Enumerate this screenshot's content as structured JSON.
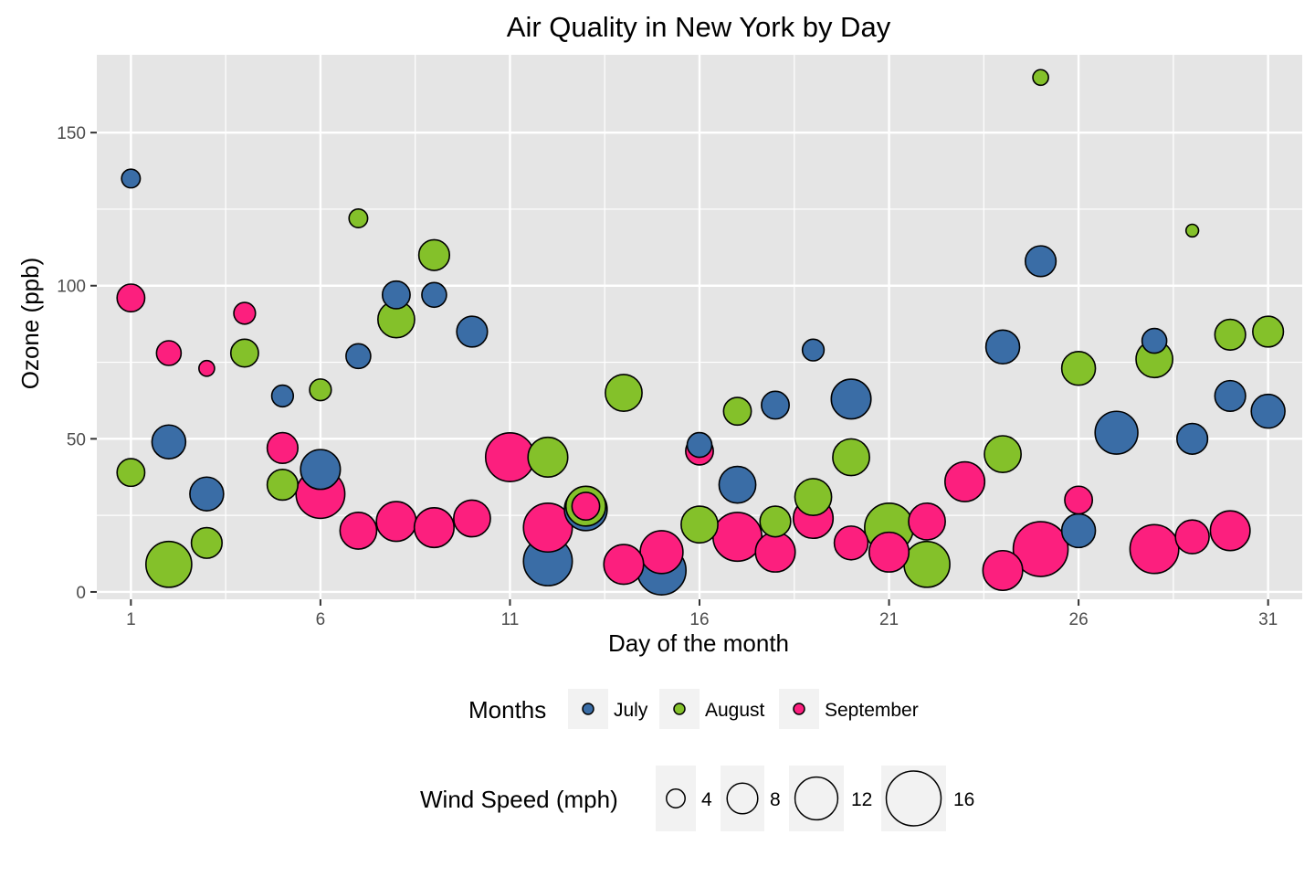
{
  "chart_data": {
    "type": "scatter",
    "title": "Air Quality in New York by Day",
    "xlabel": "Day of the month",
    "ylabel": "Ozone (ppb)",
    "xlim": [
      0.1,
      31.9
    ],
    "ylim": [
      -2.4,
      175.4
    ],
    "x_ticks": [
      1,
      6,
      11,
      16,
      21,
      26,
      31
    ],
    "y_ticks": [
      0,
      50,
      100,
      150
    ],
    "grid": true,
    "colors": {
      "July": "#3a6da6",
      "August": "#84c12a",
      "September": "#fc1f7e"
    },
    "series": [
      {
        "name": "July",
        "points": [
          {
            "day": 1,
            "ozone": 135,
            "wind": 4
          },
          {
            "day": 2,
            "ozone": 49,
            "wind": 9
          },
          {
            "day": 3,
            "ozone": 32,
            "wind": 9
          },
          {
            "day": 5,
            "ozone": 64,
            "wind": 5
          },
          {
            "day": 6,
            "ozone": 40,
            "wind": 11
          },
          {
            "day": 7,
            "ozone": 77,
            "wind": 6
          },
          {
            "day": 8,
            "ozone": 97,
            "wind": 7
          },
          {
            "day": 9,
            "ozone": 97,
            "wind": 6
          },
          {
            "day": 10,
            "ozone": 85,
            "wind": 8
          },
          {
            "day": 12,
            "ozone": 10,
            "wind": 14
          },
          {
            "day": 13,
            "ozone": 27,
            "wind": 12
          },
          {
            "day": 15,
            "ozone": 7,
            "wind": 14
          },
          {
            "day": 16,
            "ozone": 48,
            "wind": 6
          },
          {
            "day": 17,
            "ozone": 35,
            "wind": 10
          },
          {
            "day": 18,
            "ozone": 61,
            "wind": 7
          },
          {
            "day": 19,
            "ozone": 79,
            "wind": 5
          },
          {
            "day": 20,
            "ozone": 63,
            "wind": 11
          },
          {
            "day": 24,
            "ozone": 80,
            "wind": 9
          },
          {
            "day": 25,
            "ozone": 108,
            "wind": 8
          },
          {
            "day": 26,
            "ozone": 20,
            "wind": 9
          },
          {
            "day": 27,
            "ozone": 52,
            "wind": 12
          },
          {
            "day": 28,
            "ozone": 82,
            "wind": 6
          },
          {
            "day": 29,
            "ozone": 50,
            "wind": 8
          },
          {
            "day": 30,
            "ozone": 64,
            "wind": 8
          },
          {
            "day": 31,
            "ozone": 59,
            "wind": 9
          }
        ]
      },
      {
        "name": "August",
        "points": [
          {
            "day": 1,
            "ozone": 39,
            "wind": 7
          },
          {
            "day": 2,
            "ozone": 9,
            "wind": 13
          },
          {
            "day": 3,
            "ozone": 16,
            "wind": 8
          },
          {
            "day": 4,
            "ozone": 78,
            "wind": 7
          },
          {
            "day": 5,
            "ozone": 35,
            "wind": 8
          },
          {
            "day": 6,
            "ozone": 66,
            "wind": 5
          },
          {
            "day": 7,
            "ozone": 122,
            "wind": 4
          },
          {
            "day": 8,
            "ozone": 89,
            "wind": 10
          },
          {
            "day": 9,
            "ozone": 110,
            "wind": 8
          },
          {
            "day": 12,
            "ozone": 44,
            "wind": 11
          },
          {
            "day": 13,
            "ozone": 28,
            "wind": 11
          },
          {
            "day": 14,
            "ozone": 65,
            "wind": 10
          },
          {
            "day": 16,
            "ozone": 22,
            "wind": 10
          },
          {
            "day": 17,
            "ozone": 59,
            "wind": 7
          },
          {
            "day": 18,
            "ozone": 23,
            "wind": 8
          },
          {
            "day": 19,
            "ozone": 31,
            "wind": 10
          },
          {
            "day": 20,
            "ozone": 44,
            "wind": 10
          },
          {
            "day": 21,
            "ozone": 21,
            "wind": 14
          },
          {
            "day": 22,
            "ozone": 9,
            "wind": 13
          },
          {
            "day": 24,
            "ozone": 45,
            "wind": 10
          },
          {
            "day": 25,
            "ozone": 168,
            "wind": 3
          },
          {
            "day": 26,
            "ozone": 73,
            "wind": 9
          },
          {
            "day": 28,
            "ozone": 76,
            "wind": 10
          },
          {
            "day": 29,
            "ozone": 118,
            "wind": 2
          },
          {
            "day": 30,
            "ozone": 84,
            "wind": 8
          },
          {
            "day": 31,
            "ozone": 85,
            "wind": 8
          }
        ]
      },
      {
        "name": "September",
        "points": [
          {
            "day": 1,
            "ozone": 96,
            "wind": 7
          },
          {
            "day": 2,
            "ozone": 78,
            "wind": 6
          },
          {
            "day": 3,
            "ozone": 73,
            "wind": 3
          },
          {
            "day": 4,
            "ozone": 91,
            "wind": 5
          },
          {
            "day": 5,
            "ozone": 47,
            "wind": 8
          },
          {
            "day": 6,
            "ozone": 32,
            "wind": 14
          },
          {
            "day": 7,
            "ozone": 20,
            "wind": 10
          },
          {
            "day": 8,
            "ozone": 23,
            "wind": 11
          },
          {
            "day": 9,
            "ozone": 21,
            "wind": 11
          },
          {
            "day": 10,
            "ozone": 24,
            "wind": 10
          },
          {
            "day": 11,
            "ozone": 44,
            "wind": 14
          },
          {
            "day": 12,
            "ozone": 21,
            "wind": 14
          },
          {
            "day": 13,
            "ozone": 28,
            "wind": 7
          },
          {
            "day": 14,
            "ozone": 9,
            "wind": 11
          },
          {
            "day": 15,
            "ozone": 13,
            "wind": 12
          },
          {
            "day": 16,
            "ozone": 46,
            "wind": 7
          },
          {
            "day": 17,
            "ozone": 18,
            "wind": 14
          },
          {
            "day": 18,
            "ozone": 13,
            "wind": 11
          },
          {
            "day": 19,
            "ozone": 24,
            "wind": 11
          },
          {
            "day": 20,
            "ozone": 16,
            "wind": 9
          },
          {
            "day": 21,
            "ozone": 13,
            "wind": 11
          },
          {
            "day": 22,
            "ozone": 23,
            "wind": 10
          },
          {
            "day": 23,
            "ozone": 36,
            "wind": 11
          },
          {
            "day": 24,
            "ozone": 7,
            "wind": 11
          },
          {
            "day": 25,
            "ozone": 14,
            "wind": 16
          },
          {
            "day": 26,
            "ozone": 30,
            "wind": 7
          },
          {
            "day": 28,
            "ozone": 14,
            "wind": 14
          },
          {
            "day": 29,
            "ozone": 18,
            "wind": 9
          },
          {
            "day": 30,
            "ozone": 20,
            "wind": 11
          }
        ]
      }
    ],
    "legend_color": {
      "title": "Months",
      "entries": [
        "July",
        "August",
        "September"
      ],
      "placement": "bottom"
    },
    "legend_size": {
      "title": "Wind Speed (mph)",
      "entries": [
        "4",
        "8",
        "12",
        "16"
      ],
      "values": [
        4,
        8,
        12,
        16
      ],
      "placement": "bottom"
    },
    "panel_color": "#e5e5e5",
    "grid_color": "#ffffff"
  }
}
